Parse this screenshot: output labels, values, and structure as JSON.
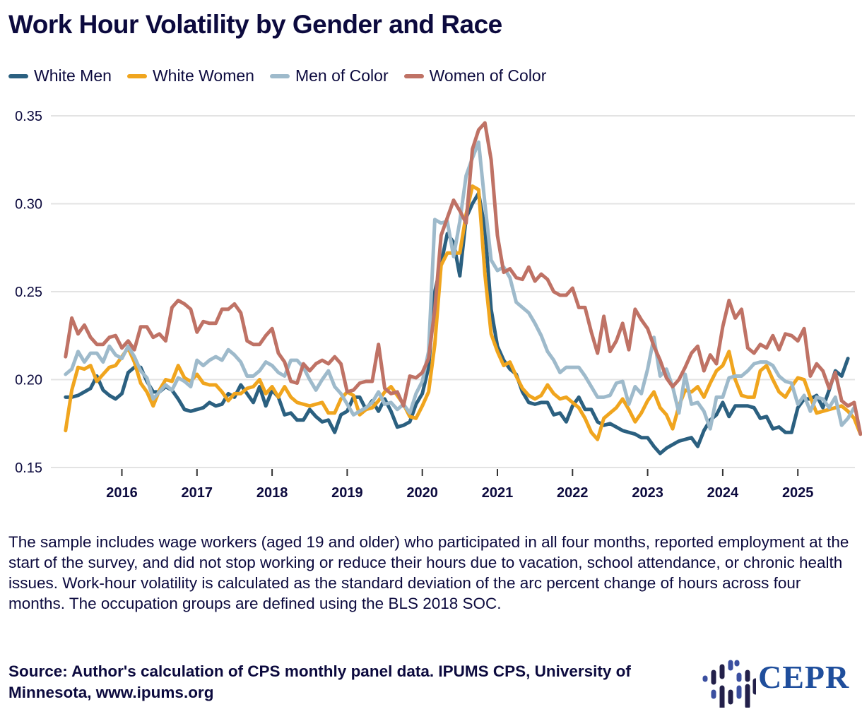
{
  "title": "Work Hour Volatility by Gender and Race",
  "note": "The sample includes wage workers (aged 19 and older) who participated in all four months, reported employment at the start of the survey, and did not stop working or reduce their hours due to vacation, school attendance, or chronic health issues. Work-hour volatility is calculated as the standard deviation of the arc percent change of hours across four months. The occupation groups are defined using the BLS 2018 SOC.",
  "source": "Source: Author's calculation of CPS monthly panel data. IPUMS CPS, University of Minnesota, www.ipums.org",
  "logo": {
    "text": "CEPR",
    "icon": "cepr-logo-icon"
  },
  "chart_data": {
    "type": "line",
    "title": "Work Hour Volatility by Gender and Race",
    "xlabel": "",
    "ylabel": "",
    "x_start": "2015-04",
    "x_end": "2025-08",
    "frequency": "monthly",
    "xticks": [
      "2016",
      "2017",
      "2018",
      "2019",
      "2020",
      "2021",
      "2022",
      "2023",
      "2024",
      "2025"
    ],
    "yticks": [
      "0.15",
      "0.20",
      "0.25",
      "0.30",
      "0.35"
    ],
    "ylim": [
      0.15,
      0.35
    ],
    "grid": "horizontal",
    "legend_position": "top-left",
    "series": [
      {
        "name": "White Men",
        "color": "#2b6080",
        "values": [
          0.19,
          0.19,
          0.191,
          0.193,
          0.195,
          0.202,
          0.194,
          0.191,
          0.189,
          0.192,
          0.204,
          0.207,
          0.207,
          0.199,
          0.193,
          0.193,
          0.196,
          0.194,
          0.189,
          0.183,
          0.182,
          0.183,
          0.184,
          0.187,
          0.185,
          0.186,
          0.192,
          0.19,
          0.197,
          0.192,
          0.187,
          0.196,
          0.185,
          0.194,
          0.19,
          0.18,
          0.181,
          0.177,
          0.177,
          0.183,
          0.179,
          0.176,
          0.177,
          0.17,
          0.18,
          0.182,
          0.19,
          0.19,
          0.183,
          0.188,
          0.182,
          0.189,
          0.182,
          0.173,
          0.174,
          0.176,
          0.186,
          0.192,
          0.207,
          0.25,
          0.266,
          0.283,
          0.278,
          0.259,
          0.292,
          0.3,
          0.306,
          0.286,
          0.24,
          0.219,
          0.211,
          0.206,
          0.203,
          0.193,
          0.187,
          0.186,
          0.187,
          0.187,
          0.18,
          0.181,
          0.176,
          0.185,
          0.19,
          0.183,
          0.183,
          0.176,
          0.174,
          0.175,
          0.173,
          0.171,
          0.17,
          0.169,
          0.167,
          0.167,
          0.162,
          0.158,
          0.161,
          0.163,
          0.165,
          0.166,
          0.167,
          0.162,
          0.171,
          0.177,
          0.18,
          0.187,
          0.179,
          0.185,
          0.185,
          0.185,
          0.184,
          0.178,
          0.179,
          0.172,
          0.173,
          0.17,
          0.17,
          0.184,
          0.189,
          0.189,
          0.191,
          0.184,
          0.194,
          0.205,
          0.202,
          0.212
        ]
      },
      {
        "name": "White Women",
        "color": "#f0a51e",
        "values": [
          0.171,
          0.194,
          0.207,
          0.206,
          0.208,
          0.199,
          0.203,
          0.207,
          0.208,
          0.213,
          0.218,
          0.21,
          0.198,
          0.193,
          0.185,
          0.194,
          0.2,
          0.199,
          0.208,
          0.201,
          0.199,
          0.203,
          0.198,
          0.197,
          0.197,
          0.193,
          0.188,
          0.192,
          0.192,
          0.195,
          0.196,
          0.2,
          0.192,
          0.196,
          0.19,
          0.196,
          0.19,
          0.187,
          0.186,
          0.185,
          0.186,
          0.187,
          0.181,
          0.181,
          0.189,
          0.193,
          0.191,
          0.18,
          0.183,
          0.184,
          0.188,
          0.193,
          0.196,
          0.191,
          0.186,
          0.179,
          0.178,
          0.185,
          0.193,
          0.22,
          0.265,
          0.272,
          0.272,
          0.272,
          0.294,
          0.31,
          0.308,
          0.26,
          0.226,
          0.216,
          0.208,
          0.21,
          0.202,
          0.195,
          0.191,
          0.189,
          0.191,
          0.197,
          0.192,
          0.189,
          0.19,
          0.187,
          0.184,
          0.178,
          0.17,
          0.166,
          0.178,
          0.181,
          0.184,
          0.189,
          0.183,
          0.176,
          0.181,
          0.188,
          0.193,
          0.184,
          0.18,
          0.172,
          0.185,
          0.194,
          0.193,
          0.196,
          0.19,
          0.198,
          0.205,
          0.208,
          0.216,
          0.2,
          0.191,
          0.19,
          0.19,
          0.205,
          0.208,
          0.2,
          0.193,
          0.19,
          0.196,
          0.201,
          0.2,
          0.19,
          0.181,
          0.182,
          0.183,
          0.184,
          0.185,
          0.182,
          0.178,
          0.169
        ]
      },
      {
        "name": "Men of Color",
        "color": "#9ebacb",
        "values": [
          0.203,
          0.206,
          0.216,
          0.21,
          0.215,
          0.215,
          0.21,
          0.219,
          0.214,
          0.212,
          0.219,
          0.213,
          0.205,
          0.201,
          0.189,
          0.193,
          0.197,
          0.194,
          0.201,
          0.199,
          0.196,
          0.211,
          0.208,
          0.211,
          0.213,
          0.211,
          0.217,
          0.214,
          0.21,
          0.202,
          0.202,
          0.205,
          0.21,
          0.208,
          0.204,
          0.202,
          0.211,
          0.211,
          0.207,
          0.2,
          0.194,
          0.2,
          0.205,
          0.196,
          0.192,
          0.186,
          0.18,
          0.182,
          0.184,
          0.187,
          0.193,
          0.186,
          0.187,
          0.183,
          0.186,
          0.181,
          0.192,
          0.199,
          0.216,
          0.291,
          0.289,
          0.29,
          0.27,
          0.29,
          0.316,
          0.326,
          0.335,
          0.3,
          0.268,
          0.262,
          0.264,
          0.258,
          0.244,
          0.241,
          0.238,
          0.232,
          0.225,
          0.216,
          0.211,
          0.204,
          0.207,
          0.207,
          0.207,
          0.202,
          0.196,
          0.19,
          0.19,
          0.191,
          0.198,
          0.199,
          0.186,
          0.196,
          0.192,
          0.206,
          0.224,
          0.202,
          0.206,
          0.196,
          0.181,
          0.203,
          0.186,
          0.187,
          0.182,
          0.172,
          0.19,
          0.19,
          0.201,
          0.202,
          0.202,
          0.205,
          0.209,
          0.21,
          0.21,
          0.208,
          0.202,
          0.199,
          0.198,
          0.186,
          0.191,
          0.182,
          0.19,
          0.189,
          0.184,
          0.19,
          0.174,
          0.178,
          0.184
        ]
      },
      {
        "name": "Women of Color",
        "color": "#bf7265",
        "values": [
          0.213,
          0.235,
          0.226,
          0.231,
          0.224,
          0.22,
          0.22,
          0.224,
          0.225,
          0.218,
          0.222,
          0.217,
          0.23,
          0.23,
          0.224,
          0.226,
          0.222,
          0.241,
          0.245,
          0.243,
          0.24,
          0.227,
          0.233,
          0.232,
          0.232,
          0.24,
          0.24,
          0.243,
          0.238,
          0.222,
          0.22,
          0.22,
          0.225,
          0.229,
          0.215,
          0.21,
          0.199,
          0.198,
          0.209,
          0.205,
          0.209,
          0.211,
          0.209,
          0.213,
          0.209,
          0.193,
          0.194,
          0.198,
          0.199,
          0.199,
          0.22,
          0.195,
          0.192,
          0.193,
          0.185,
          0.202,
          0.201,
          0.204,
          0.212,
          0.24,
          0.282,
          0.292,
          0.302,
          0.296,
          0.289,
          0.331,
          0.342,
          0.346,
          0.325,
          0.282,
          0.261,
          0.263,
          0.258,
          0.257,
          0.264,
          0.256,
          0.26,
          0.257,
          0.25,
          0.248,
          0.248,
          0.252,
          0.241,
          0.241,
          0.227,
          0.215,
          0.236,
          0.216,
          0.222,
          0.232,
          0.217,
          0.24,
          0.234,
          0.229,
          0.219,
          0.211,
          0.201,
          0.196,
          0.2,
          0.207,
          0.215,
          0.219,
          0.205,
          0.214,
          0.209,
          0.23,
          0.245,
          0.235,
          0.24,
          0.218,
          0.215,
          0.22,
          0.218,
          0.225,
          0.217,
          0.226,
          0.225,
          0.222,
          0.229,
          0.202,
          0.209,
          0.205,
          0.195,
          0.204,
          0.188,
          0.185,
          0.187,
          0.169
        ]
      }
    ]
  }
}
